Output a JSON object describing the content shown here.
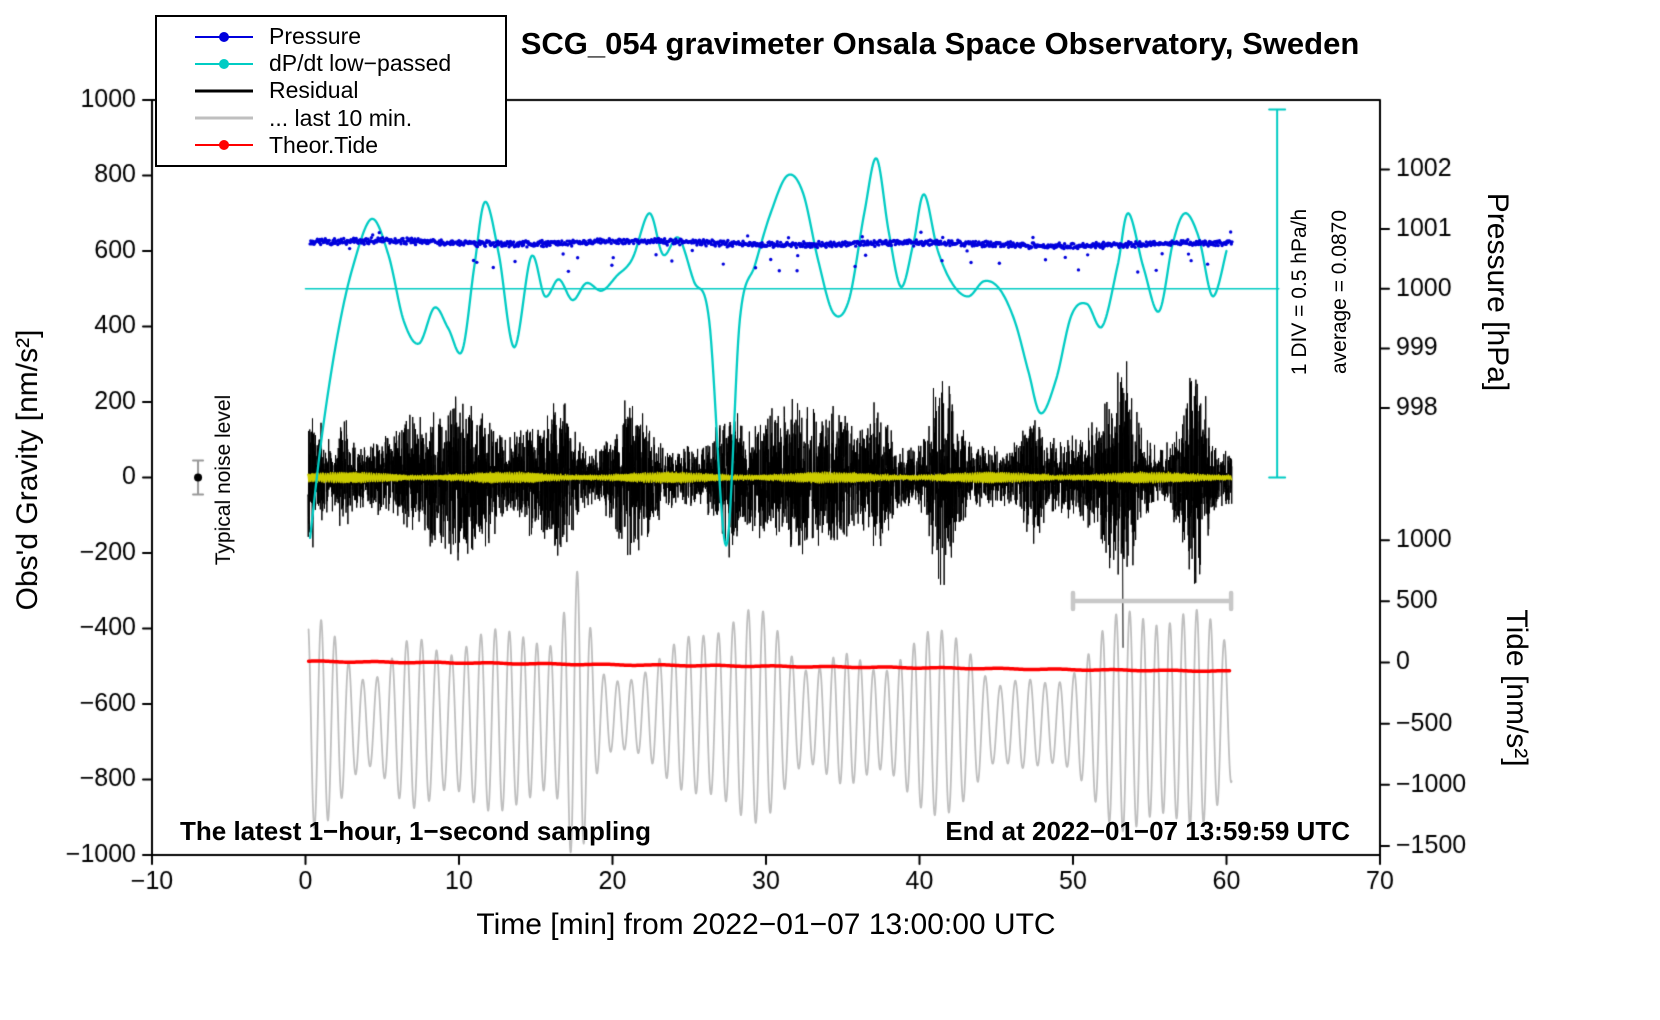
{
  "chart_data": {
    "type": "line",
    "title": "SCG_054 gravimeter Onsala Space Observatory, Sweden",
    "xlabel": "Time [min] from 2022−01−07 13:00:00 UTC",
    "ylabel": "Obs'd Gravity [nm/s²]",
    "xlim": [
      -10,
      70
    ],
    "ylim": [
      -1000,
      1000
    ],
    "grid": false,
    "xticks": {
      "values": [
        -10,
        0,
        10,
        20,
        30,
        40,
        50,
        60,
        70
      ],
      "labels": [
        "−10",
        "0",
        "10",
        "20",
        "30",
        "40",
        "50",
        "60",
        "70"
      ]
    },
    "yticks": {
      "values": [
        -1000,
        -800,
        -600,
        -400,
        -200,
        0,
        200,
        400,
        600,
        800,
        1000
      ],
      "labels": [
        "−1000",
        "−800",
        "−600",
        "−400",
        "−200",
        "0",
        "200",
        "400",
        "600",
        "800",
        "1000"
      ]
    },
    "pressure_axis": {
      "label": "Pressure [hPa]",
      "tick_values_hpa": [
        1002,
        1001,
        1000,
        999,
        998
      ],
      "tick_labels": [
        "1002",
        "1001",
        "1000",
        "999",
        "998"
      ],
      "gravity_of_1000hPa": 500,
      "gravity_per_hpa": 158
    },
    "tide_axis": {
      "label": "Tide [nm/s²]",
      "tick_values": [
        1000,
        500,
        0,
        -500,
        -1000,
        -1500
      ],
      "tick_labels": [
        "1000",
        "500",
        "0",
        "−500",
        "−1000",
        "−1500"
      ],
      "gravity_of_zero_tide": -490,
      "gravity_per_tide_unit": 0.324
    },
    "legend": {
      "position": "top-left",
      "entries": [
        {
          "label": "Pressure",
          "color": "#0000dd",
          "marker": "dot-line"
        },
        {
          "label": "dP/dt low−passed",
          "color": "#00ccc4",
          "marker": "dot-line"
        },
        {
          "label": "Residual",
          "color": "#000000",
          "marker": "line"
        },
        {
          "label": "... last 10 min.",
          "color": "#bfbfbf",
          "marker": "line"
        },
        {
          "label": "Theor.Tide",
          "color": "#ff0000",
          "marker": "dot-line"
        }
      ]
    },
    "series": [
      {
        "key": "pressure",
        "name": "Pressure",
        "type": "scatter-dots",
        "color": "#0000dd",
        "axis": "pressure_right",
        "x_range": [
          0.3,
          60.4
        ],
        "n_points": 1400,
        "mean_gravity": 620,
        "mean_pressure_hpa": 1000.8,
        "noise_sigma": 6
      },
      {
        "key": "dpdt",
        "name": "dP/dt low−passed",
        "type": "smooth-line",
        "color": "#00ccc4",
        "mean_line_gravity": 500,
        "average_hpa_per_h": 0.087,
        "x": [
          0.3,
          1.1,
          2.1,
          3.1,
          4.3,
          5.4,
          6.4,
          7.4,
          8.4,
          9.3,
          10.2,
          11.0,
          11.7,
          12.6,
          13.6,
          14.7,
          15.6,
          16.5,
          17.4,
          18.3,
          19.3,
          20.3,
          21.3,
          22.4,
          23.3,
          24.3,
          25.3,
          26.3,
          27.4,
          28.3,
          29.3,
          30.3,
          31.4,
          32.4,
          33.4,
          34.4,
          35.4,
          36.4,
          37.2,
          38.0,
          38.8,
          39.6,
          40.3,
          41.2,
          42.2,
          43.2,
          44.2,
          45.2,
          46.2,
          47.1,
          47.9,
          48.9,
          49.9,
          50.9,
          51.9,
          52.9,
          53.6,
          54.6,
          55.6,
          56.5,
          57.3,
          58.2,
          59.1,
          60.0
        ],
        "y": [
          -160,
          120,
          380,
          560,
          685,
          590,
          415,
          355,
          450,
          395,
          335,
          560,
          730,
          590,
          345,
          585,
          480,
          525,
          470,
          515,
          495,
          535,
          580,
          700,
          590,
          635,
          520,
          415,
          -180,
          420,
          565,
          700,
          800,
          755,
          575,
          435,
          470,
          700,
          845,
          650,
          505,
          620,
          750,
          600,
          510,
          480,
          520,
          500,
          415,
          280,
          170,
          260,
          430,
          460,
          400,
          560,
          700,
          555,
          440,
          620,
          700,
          635,
          480,
          600
        ]
      },
      {
        "key": "residual",
        "name": "Residual",
        "type": "noise-band",
        "color": "#000000",
        "center_gravity": 0,
        "x_range": [
          0.15,
          60.35
        ],
        "half_width_typical": [
          90,
          230
        ],
        "half_width_max": 360,
        "spike": {
          "x": 53.2,
          "y_min": -450
        }
      },
      {
        "key": "residual_lowpass",
        "name": "Residual low−passed",
        "type": "line",
        "color": "#cccc00",
        "center_gravity": 0,
        "amplitude": 13,
        "x_range": [
          0.15,
          60.35
        ]
      },
      {
        "key": "last10",
        "name": "... last 10 min.",
        "type": "oscillation",
        "color": "#bfbfbf",
        "axis": "tide_right",
        "center_gravity": -640,
        "period_min": 0.92,
        "amplitude_min": 90,
        "amplitude_max": 385,
        "x_range": [
          0.2,
          60.35
        ]
      },
      {
        "key": "tide",
        "name": "Theor.Tide",
        "type": "line",
        "color": "#ff0000",
        "axis": "tide_right",
        "x": [
          0,
          10,
          20,
          30,
          40,
          50,
          60
        ],
        "y": [
          -487,
          -491,
          -496,
          -500,
          -504,
          -509,
          -513
        ]
      }
    ],
    "annotations": {
      "noise_marker": {
        "label": "Typical noise level",
        "x": -7,
        "y": 0,
        "error": 45
      },
      "scale_bar": {
        "label": "1 DIV = 0.5 hPa/h",
        "sublabel": "average = 0.0870",
        "x": 63.3,
        "y_from": 0,
        "y_to": 975,
        "color": "#00ccc4"
      },
      "uncertainty_bar": {
        "x_from": 50,
        "x_to": 60.3,
        "y": -327,
        "color": "#c8c8c8"
      },
      "bottom_left": "The latest 1−hour, 1−second sampling",
      "bottom_right": "End at 2022−01−07 13:59:59 UTC"
    }
  }
}
